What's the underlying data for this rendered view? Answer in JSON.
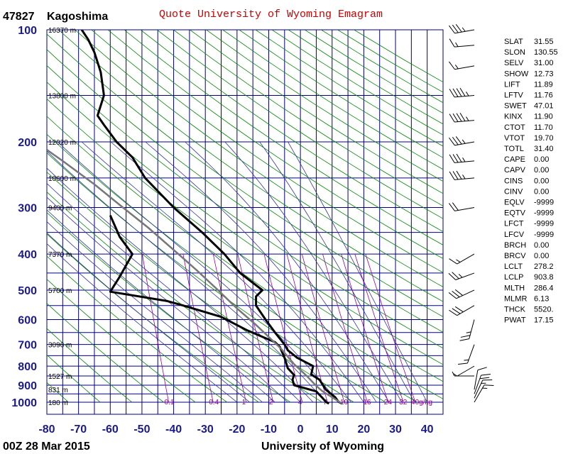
{
  "station": {
    "id": "47827",
    "name": "Kagoshima"
  },
  "title": "Quote University of Wyoming Emagram",
  "footer": {
    "date": "00Z 28 Mar 2015",
    "source": "University of Wyoming"
  },
  "chart_data": {
    "type": "line",
    "chart_kind": "emagram",
    "xlim": [
      -80,
      45
    ],
    "ylim_pressure": [
      1000,
      100
    ],
    "y_scale": "log",
    "x_ticks": [
      -80,
      -70,
      -60,
      -50,
      -40,
      -30,
      -20,
      -10,
      0,
      10,
      20,
      30,
      40
    ],
    "y_ticks": [
      1000,
      900,
      800,
      700,
      600,
      500,
      400,
      300,
      200,
      100
    ],
    "height_labels": [
      {
        "p": 1000,
        "label": "180 m"
      },
      {
        "p": 925,
        "label": "831 m"
      },
      {
        "p": 850,
        "label": "1527 m"
      },
      {
        "p": 700,
        "label": "3096 m"
      },
      {
        "p": 500,
        "label": "5700 m"
      },
      {
        "p": 400,
        "label": "7370 m"
      },
      {
        "p": 300,
        "label": "9400 m"
      },
      {
        "p": 250,
        "label": "10600 m"
      },
      {
        "p": 200,
        "label": "12020 m"
      },
      {
        "p": 150,
        "label": "13800 m"
      },
      {
        "p": 100,
        "label": "16370 m"
      }
    ],
    "mixing_ratio_labels": [
      "0.1",
      "0.4",
      "1",
      "2",
      "4",
      "7",
      "10",
      "16",
      "24",
      "32",
      "40g/kg"
    ],
    "series": [
      {
        "name": "temperature",
        "color": "#000000",
        "points": [
          {
            "t": 13.2,
            "p": 1009
          },
          {
            "t": 12.0,
            "p": 997
          },
          {
            "t": 11.0,
            "p": 970
          },
          {
            "t": 8.0,
            "p": 925
          },
          {
            "t": 6.0,
            "p": 870
          },
          {
            "t": 3.4,
            "p": 842
          },
          {
            "t": 4.0,
            "p": 800
          },
          {
            "t": -1.0,
            "p": 760
          },
          {
            "t": -4.0,
            "p": 725
          },
          {
            "t": -5.0,
            "p": 700
          },
          {
            "t": -8.0,
            "p": 650
          },
          {
            "t": -11.0,
            "p": 600
          },
          {
            "t": -14.0,
            "p": 550
          },
          {
            "t": -14.0,
            "p": 520
          },
          {
            "t": -12.0,
            "p": 500
          },
          {
            "t": -19.0,
            "p": 450
          },
          {
            "t": -24.0,
            "p": 400
          },
          {
            "t": -31.0,
            "p": 350
          },
          {
            "t": -40.0,
            "p": 300
          },
          {
            "t": -49.0,
            "p": 250
          },
          {
            "t": -53.0,
            "p": 220
          },
          {
            "t": -58.0,
            "p": 200
          },
          {
            "t": -62.0,
            "p": 180
          },
          {
            "t": -64.0,
            "p": 170
          },
          {
            "t": -62.0,
            "p": 150
          },
          {
            "t": -63.0,
            "p": 130
          },
          {
            "t": -65.0,
            "p": 115
          },
          {
            "t": -67.0,
            "p": 106
          },
          {
            "t": -69.0,
            "p": 100
          }
        ]
      },
      {
        "name": "dewpoint",
        "color": "#000000",
        "points": [
          {
            "t": 9.0,
            "p": 1009
          },
          {
            "t": 8.0,
            "p": 997
          },
          {
            "t": 7.0,
            "p": 975
          },
          {
            "t": 6.0,
            "p": 955
          },
          {
            "t": 5.0,
            "p": 935
          },
          {
            "t": -2.0,
            "p": 900
          },
          {
            "t": -2.5,
            "p": 870
          },
          {
            "t": -2.0,
            "p": 845
          },
          {
            "t": -4.0,
            "p": 810
          },
          {
            "t": -5.0,
            "p": 760
          },
          {
            "t": -6.5,
            "p": 710
          },
          {
            "t": -8.0,
            "p": 690
          },
          {
            "t": -17.0,
            "p": 640
          },
          {
            "t": -25.0,
            "p": 590
          },
          {
            "t": -37.0,
            "p": 550
          },
          {
            "t": -42.0,
            "p": 535
          },
          {
            "t": -60.0,
            "p": 505
          },
          {
            "t": -57.0,
            "p": 460
          },
          {
            "t": -53.0,
            "p": 400
          },
          {
            "t": -57.0,
            "p": 360
          },
          {
            "t": -60.0,
            "p": 315
          }
        ]
      },
      {
        "name": "parcel",
        "color": "#777777",
        "points": [
          {
            "t": 13.2,
            "p": 1009
          },
          {
            "t": 10.0,
            "p": 970
          },
          {
            "t": 7.0,
            "p": 935
          },
          {
            "t": 5.0,
            "p": 904
          },
          {
            "t": 2.0,
            "p": 850
          },
          {
            "t": -2.0,
            "p": 790
          },
          {
            "t": -6.0,
            "p": 720
          },
          {
            "t": -9.0,
            "p": 680
          },
          {
            "t": -14.0,
            "p": 620
          },
          {
            "t": -20.0,
            "p": 560
          },
          {
            "t": -26.0,
            "p": 500
          },
          {
            "t": -33.0,
            "p": 440
          },
          {
            "t": -40.0,
            "p": 390
          },
          {
            "t": -48.0,
            "p": 340
          },
          {
            "t": -56.0,
            "p": 300
          },
          {
            "t": -65.0,
            "p": 260
          },
          {
            "t": -75.0,
            "p": 225
          },
          {
            "t": -80.0,
            "p": 210
          }
        ]
      }
    ],
    "wind_barbs": [
      {
        "p": 1000,
        "dir": 30,
        "spd": 15
      },
      {
        "p": 975,
        "dir": 25,
        "spd": 15
      },
      {
        "p": 950,
        "dir": 20,
        "spd": 20
      },
      {
        "p": 925,
        "dir": 10,
        "spd": 10
      },
      {
        "p": 850,
        "dir": 270,
        "spd": 5
      },
      {
        "p": 800,
        "dir": 240,
        "spd": 5
      },
      {
        "p": 700,
        "dir": 200,
        "spd": 15
      },
      {
        "p": 600,
        "dir": 195,
        "spd": 25
      },
      {
        "p": 550,
        "dir": 240,
        "spd": 30
      },
      {
        "p": 500,
        "dir": 245,
        "spd": 30
      },
      {
        "p": 450,
        "dir": 250,
        "spd": 25
      },
      {
        "p": 400,
        "dir": 240,
        "spd": 15
      },
      {
        "p": 300,
        "dir": 260,
        "spd": 20
      },
      {
        "p": 250,
        "dir": 265,
        "spd": 35
      },
      {
        "p": 225,
        "dir": 265,
        "spd": 35
      },
      {
        "p": 200,
        "dir": 260,
        "spd": 35
      },
      {
        "p": 175,
        "dir": 265,
        "spd": 45
      },
      {
        "p": 150,
        "dir": 265,
        "spd": 45
      },
      {
        "p": 125,
        "dir": 260,
        "spd": 15
      },
      {
        "p": 110,
        "dir": 265,
        "spd": 15
      },
      {
        "p": 100,
        "dir": 260,
        "spd": 35
      }
    ],
    "indices": [
      {
        "key": "SLAT",
        "value": "31.55"
      },
      {
        "key": "SLON",
        "value": "130.55"
      },
      {
        "key": "SELV",
        "value": "31.00"
      },
      {
        "key": "SHOW",
        "value": "12.73"
      },
      {
        "key": "LIFT",
        "value": "11.89"
      },
      {
        "key": "LFTV",
        "value": "11.76"
      },
      {
        "key": "SWET",
        "value": "47.01"
      },
      {
        "key": "KINX",
        "value": "11.90"
      },
      {
        "key": "CTOT",
        "value": "11.70"
      },
      {
        "key": "VTOT",
        "value": "19.70"
      },
      {
        "key": "TOTL",
        "value": "31.40"
      },
      {
        "key": "CAPE",
        "value": "0.00"
      },
      {
        "key": "CAPV",
        "value": "0.00"
      },
      {
        "key": "CINS",
        "value": "0.00"
      },
      {
        "key": "CINV",
        "value": "0.00"
      },
      {
        "key": "EQLV",
        "value": "-9999"
      },
      {
        "key": "EQTV",
        "value": "-9999"
      },
      {
        "key": "LFCT",
        "value": "-9999"
      },
      {
        "key": "LFCV",
        "value": "-9999"
      },
      {
        "key": "BRCH",
        "value": "0.00"
      },
      {
        "key": "BRCV",
        "value": "0.00"
      },
      {
        "key": "LCLT",
        "value": "278.2"
      },
      {
        "key": "LCLP",
        "value": "903.8"
      },
      {
        "key": "MLTH",
        "value": "286.4"
      },
      {
        "key": "MLMR",
        "value": "6.13"
      },
      {
        "key": "THCK",
        "value": "5520."
      },
      {
        "key": "PWAT",
        "value": "17.15"
      }
    ]
  }
}
